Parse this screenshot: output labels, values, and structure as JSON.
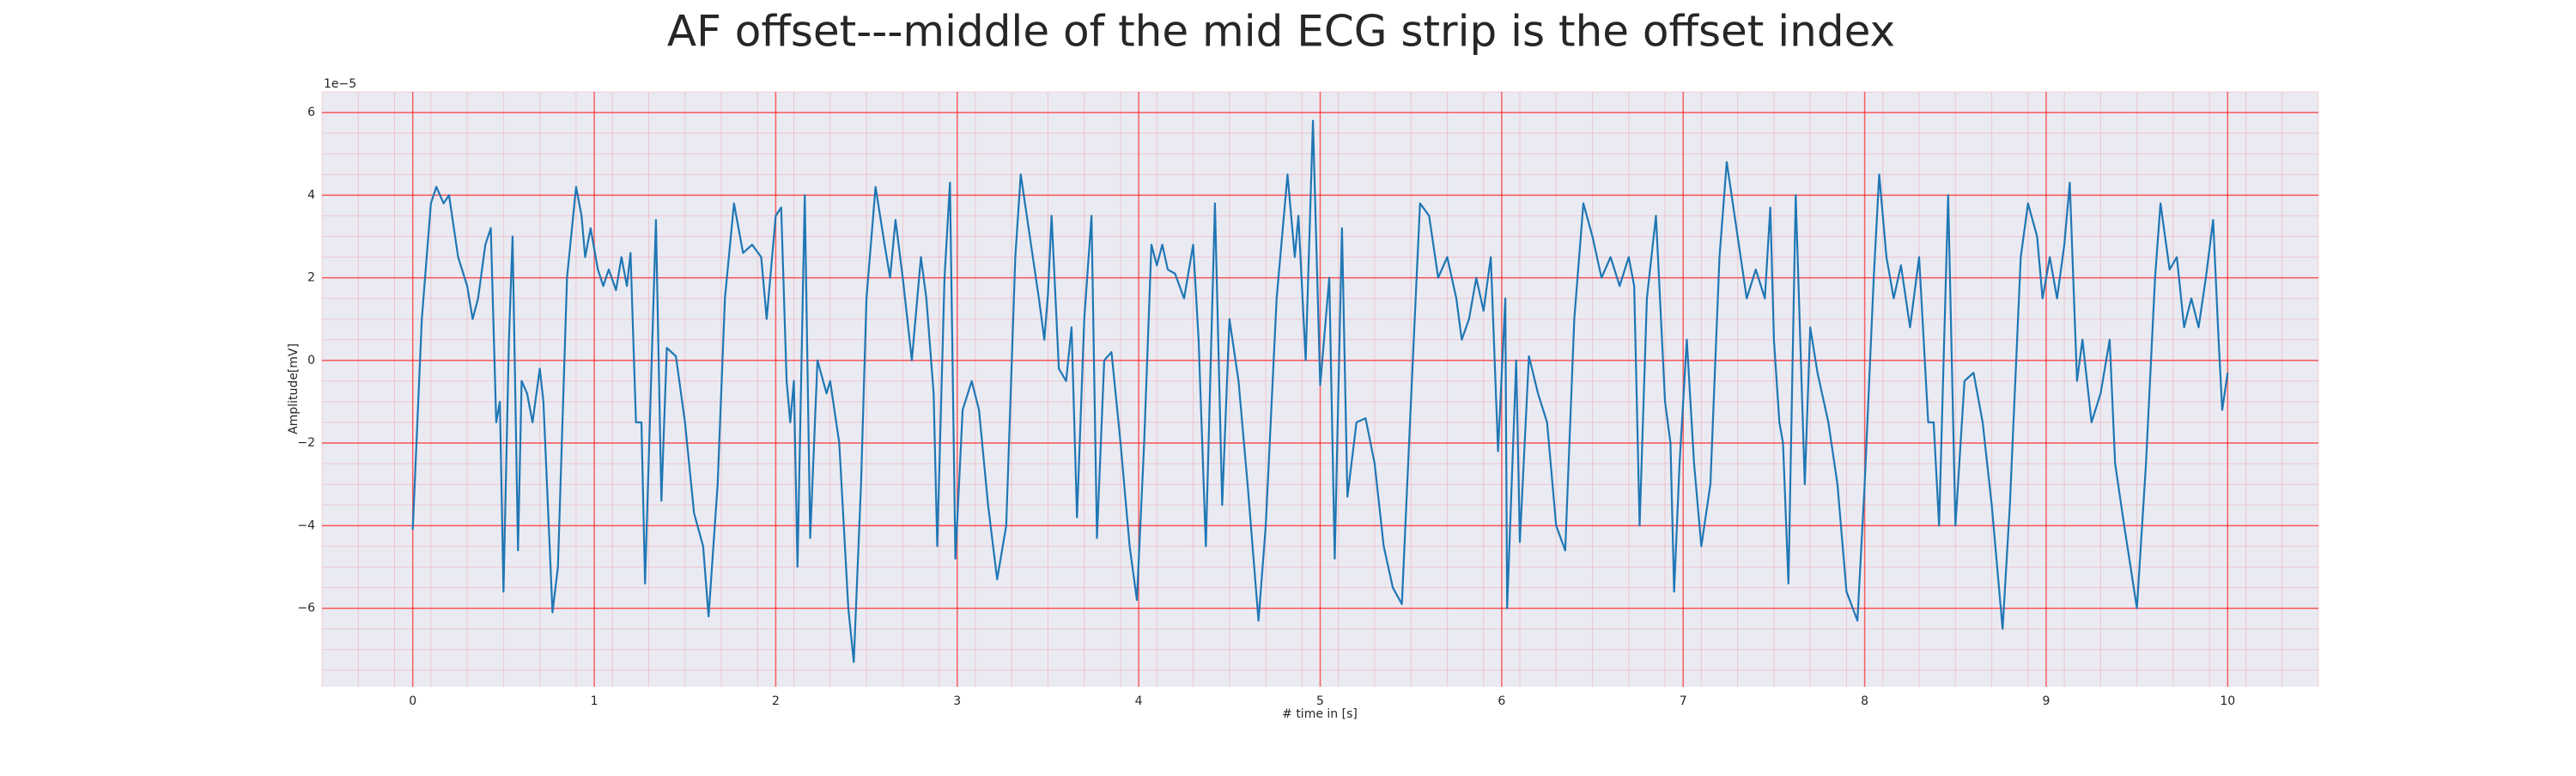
{
  "chart_data": {
    "type": "line",
    "title": "AF offset---middle of the mid ECG strip is the offset index",
    "x_label": "# time in [s]",
    "y_label": "Amplitude[mV]",
    "y_offset_label": "1e−5",
    "xlim": [
      -0.5,
      10.5
    ],
    "ylim": [
      -7.9,
      6.5
    ],
    "xticks": [
      0,
      1,
      2,
      3,
      4,
      5,
      6,
      7,
      8,
      9,
      10
    ],
    "yticks": [
      {
        "value": -6,
        "label": "−6"
      },
      {
        "value": -4,
        "label": "−4"
      },
      {
        "value": -2,
        "label": "−2"
      },
      0,
      2,
      4,
      6
    ],
    "grid": true,
    "minor_grid": true,
    "grid_color": "#ff0000",
    "background": "#eaeaf2",
    "series": [
      {
        "color": "#1f77b4",
        "x": [
          0,
          0.05,
          0.1,
          0.13,
          0.17,
          0.2,
          0.25,
          0.3,
          0.33,
          0.36,
          0.4,
          0.43,
          0.46,
          0.48,
          0.5,
          0.53,
          0.55,
          0.58,
          0.6,
          0.63,
          0.66,
          0.7,
          0.72,
          0.77,
          0.8,
          0.85,
          0.9,
          0.93,
          0.95,
          0.98,
          1.02,
          1.05,
          1.08,
          1.12,
          1.15,
          1.18,
          1.2,
          1.23,
          1.26,
          1.28,
          1.32,
          1.34,
          1.37,
          1.4,
          1.45,
          1.5,
          1.55,
          1.6,
          1.63,
          1.68,
          1.72,
          1.77,
          1.82,
          1.87,
          1.92,
          1.95,
          2.0,
          2.03,
          2.06,
          2.08,
          2.1,
          2.12,
          2.16,
          2.19,
          2.23,
          2.28,
          2.3,
          2.35,
          2.4,
          2.43,
          2.47,
          2.5,
          2.55,
          2.6,
          2.63,
          2.66,
          2.7,
          2.75,
          2.8,
          2.83,
          2.87,
          2.89,
          2.93,
          2.96,
          2.99,
          3.03,
          3.08,
          3.12,
          3.17,
          3.22,
          3.27,
          3.32,
          3.35,
          3.4,
          3.45,
          3.48,
          3.5,
          3.52,
          3.56,
          3.6,
          3.63,
          3.66,
          3.7,
          3.74,
          3.77,
          3.81,
          3.85,
          3.9,
          3.95,
          3.99,
          4.03,
          4.07,
          4.1,
          4.13,
          4.16,
          4.2,
          4.25,
          4.3,
          4.33,
          4.37,
          4.42,
          4.46,
          4.5,
          4.55,
          4.6,
          4.66,
          4.7,
          4.76,
          4.82,
          4.86,
          4.88,
          4.92,
          4.96,
          5.0,
          5.05,
          5.08,
          5.12,
          5.15,
          5.2,
          5.25,
          5.3,
          5.35,
          5.4,
          5.45,
          5.5,
          5.55,
          5.6,
          5.65,
          5.7,
          5.75,
          5.78,
          5.82,
          5.86,
          5.9,
          5.94,
          5.98,
          6.02,
          6.03,
          6.08,
          6.1,
          6.15,
          6.2,
          6.25,
          6.3,
          6.35,
          6.4,
          6.45,
          6.5,
          6.55,
          6.6,
          6.65,
          6.7,
          6.73,
          6.76,
          6.8,
          6.85,
          6.9,
          6.93,
          6.95,
          6.98,
          7.02,
          7.06,
          7.1,
          7.15,
          7.2,
          7.24,
          7.3,
          7.35,
          7.4,
          7.45,
          7.48,
          7.5,
          7.53,
          7.55,
          7.58,
          7.62,
          7.67,
          7.7,
          7.74,
          7.8,
          7.85,
          7.9,
          7.96,
          8.0,
          8.05,
          8.08,
          8.12,
          8.16,
          8.2,
          8.25,
          8.3,
          8.35,
          8.38,
          8.41,
          8.46,
          8.5,
          8.55,
          8.6,
          8.65,
          8.7,
          8.76,
          8.8,
          8.86,
          8.9,
          8.95,
          8.98,
          9.02,
          9.06,
          9.1,
          9.13,
          9.17,
          9.2,
          9.25,
          9.3,
          9.35,
          9.38,
          9.43,
          9.5,
          9.55,
          9.6,
          9.63,
          9.68,
          9.72,
          9.76,
          9.8,
          9.84,
          9.88,
          9.92,
          9.95,
          9.97,
          10.0
        ],
        "values": [
          -4.1,
          1.0,
          3.8,
          4.2,
          3.8,
          4.0,
          2.5,
          1.8,
          1.0,
          1.5,
          2.8,
          3.2,
          -1.5,
          -1.0,
          -5.6,
          0.5,
          3.0,
          -4.6,
          -0.5,
          -0.8,
          -1.5,
          -0.2,
          -1.0,
          -6.1,
          -5.0,
          2.0,
          4.2,
          3.5,
          2.5,
          3.2,
          2.2,
          1.8,
          2.2,
          1.7,
          2.5,
          1.8,
          2.6,
          -1.5,
          -1.5,
          -5.4,
          0.5,
          3.4,
          -3.4,
          0.3,
          0.1,
          -1.5,
          -3.7,
          -4.5,
          -6.2,
          -3.0,
          1.5,
          3.8,
          2.6,
          2.8,
          2.5,
          1.0,
          3.5,
          3.7,
          -0.5,
          -1.5,
          -0.5,
          -5.0,
          4.0,
          -4.3,
          0.0,
          -0.8,
          -0.5,
          -2.0,
          -6.0,
          -7.3,
          -3.0,
          1.5,
          4.2,
          2.8,
          2.0,
          3.4,
          2.0,
          0.0,
          2.5,
          1.5,
          -0.8,
          -4.5,
          2.0,
          4.3,
          -4.8,
          -1.2,
          -0.5,
          -1.2,
          -3.5,
          -5.3,
          -4.0,
          2.5,
          4.5,
          3.0,
          1.5,
          0.5,
          1.6,
          3.5,
          -0.2,
          -0.5,
          0.8,
          -3.8,
          1.0,
          3.5,
          -4.3,
          0.0,
          0.2,
          -2.0,
          -4.5,
          -5.8,
          -2.0,
          2.8,
          2.3,
          2.8,
          2.2,
          2.1,
          1.5,
          2.8,
          0.5,
          -4.5,
          3.8,
          -3.5,
          1.0,
          -0.5,
          -3.0,
          -6.3,
          -4.0,
          1.5,
          4.5,
          2.5,
          3.5,
          0.0,
          5.8,
          -0.6,
          2.0,
          -4.8,
          3.2,
          -3.3,
          -1.5,
          -1.4,
          -2.5,
          -4.5,
          -5.5,
          -5.9,
          -1.0,
          3.8,
          3.5,
          2.0,
          2.5,
          1.5,
          0.5,
          1.0,
          2.0,
          1.2,
          2.5,
          -2.2,
          1.5,
          -6.0,
          0.0,
          -4.4,
          0.1,
          -0.8,
          -1.5,
          -4.0,
          -4.6,
          1.0,
          3.8,
          3.0,
          2.0,
          2.5,
          1.8,
          2.5,
          1.8,
          -4.0,
          1.5,
          3.5,
          -1.0,
          -2.0,
          -5.6,
          -2.5,
          0.5,
          -2.5,
          -4.5,
          -3.0,
          2.5,
          4.8,
          3.0,
          1.5,
          2.2,
          1.5,
          3.7,
          0.5,
          -1.5,
          -2.0,
          -5.4,
          4.0,
          -3.0,
          0.8,
          -0.3,
          -1.5,
          -3.0,
          -5.6,
          -6.3,
          -3.0,
          2.0,
          4.5,
          2.5,
          1.5,
          2.3,
          0.8,
          2.5,
          -1.5,
          -1.5,
          -4.0,
          4.0,
          -4.0,
          -0.5,
          -0.3,
          -1.5,
          -3.5,
          -6.5,
          -3.5,
          2.5,
          3.8,
          3.0,
          1.5,
          2.5,
          1.5,
          2.8,
          4.3,
          -0.5,
          0.5,
          -1.5,
          -0.8,
          0.5,
          -2.5,
          -4.0,
          -6.0,
          -2.5,
          2.0,
          3.8,
          2.2,
          2.5,
          0.8,
          1.5,
          0.8,
          2.0,
          3.4,
          0.5,
          -1.2,
          -0.3
        ]
      }
    ]
  }
}
